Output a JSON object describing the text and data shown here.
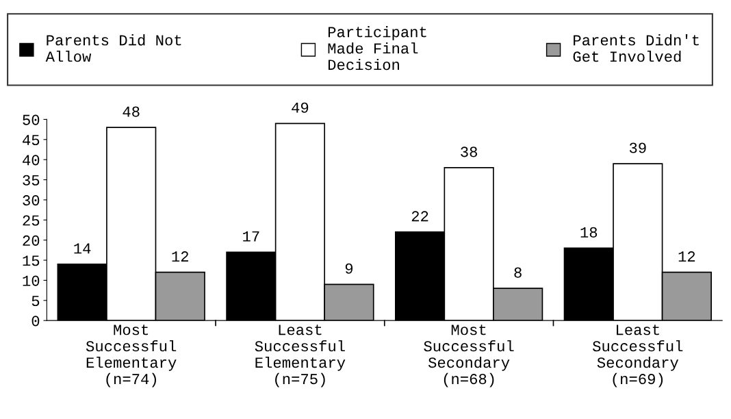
{
  "chart_data": {
    "type": "bar",
    "categories": [
      "Most\nSuccessful\nElementary\n(n=74)",
      "Least\nSuccessful\nElementary\n(n=75)",
      "Most\nSuccessful\nSecondary\n(n=68)",
      "Least\nSuccessful\nSecondary\n(n=69)"
    ],
    "series": [
      {
        "name": "Parents Did Not\nAllow",
        "color": "#000000",
        "values": [
          14,
          17,
          22,
          18
        ]
      },
      {
        "name": "Participant\nMade Final\nDecision",
        "color": "#ffffff",
        "values": [
          48,
          49,
          38,
          39
        ]
      },
      {
        "name": "Parents Didn't\nGet Involved",
        "color": "#9a9a9a",
        "values": [
          12,
          9,
          8,
          12
        ]
      }
    ],
    "ylim": [
      0,
      50
    ],
    "yticks": [
      0,
      5,
      10,
      15,
      20,
      25,
      30,
      35,
      40,
      45,
      50
    ],
    "data_labels": true,
    "legend": "top",
    "grid": false
  }
}
